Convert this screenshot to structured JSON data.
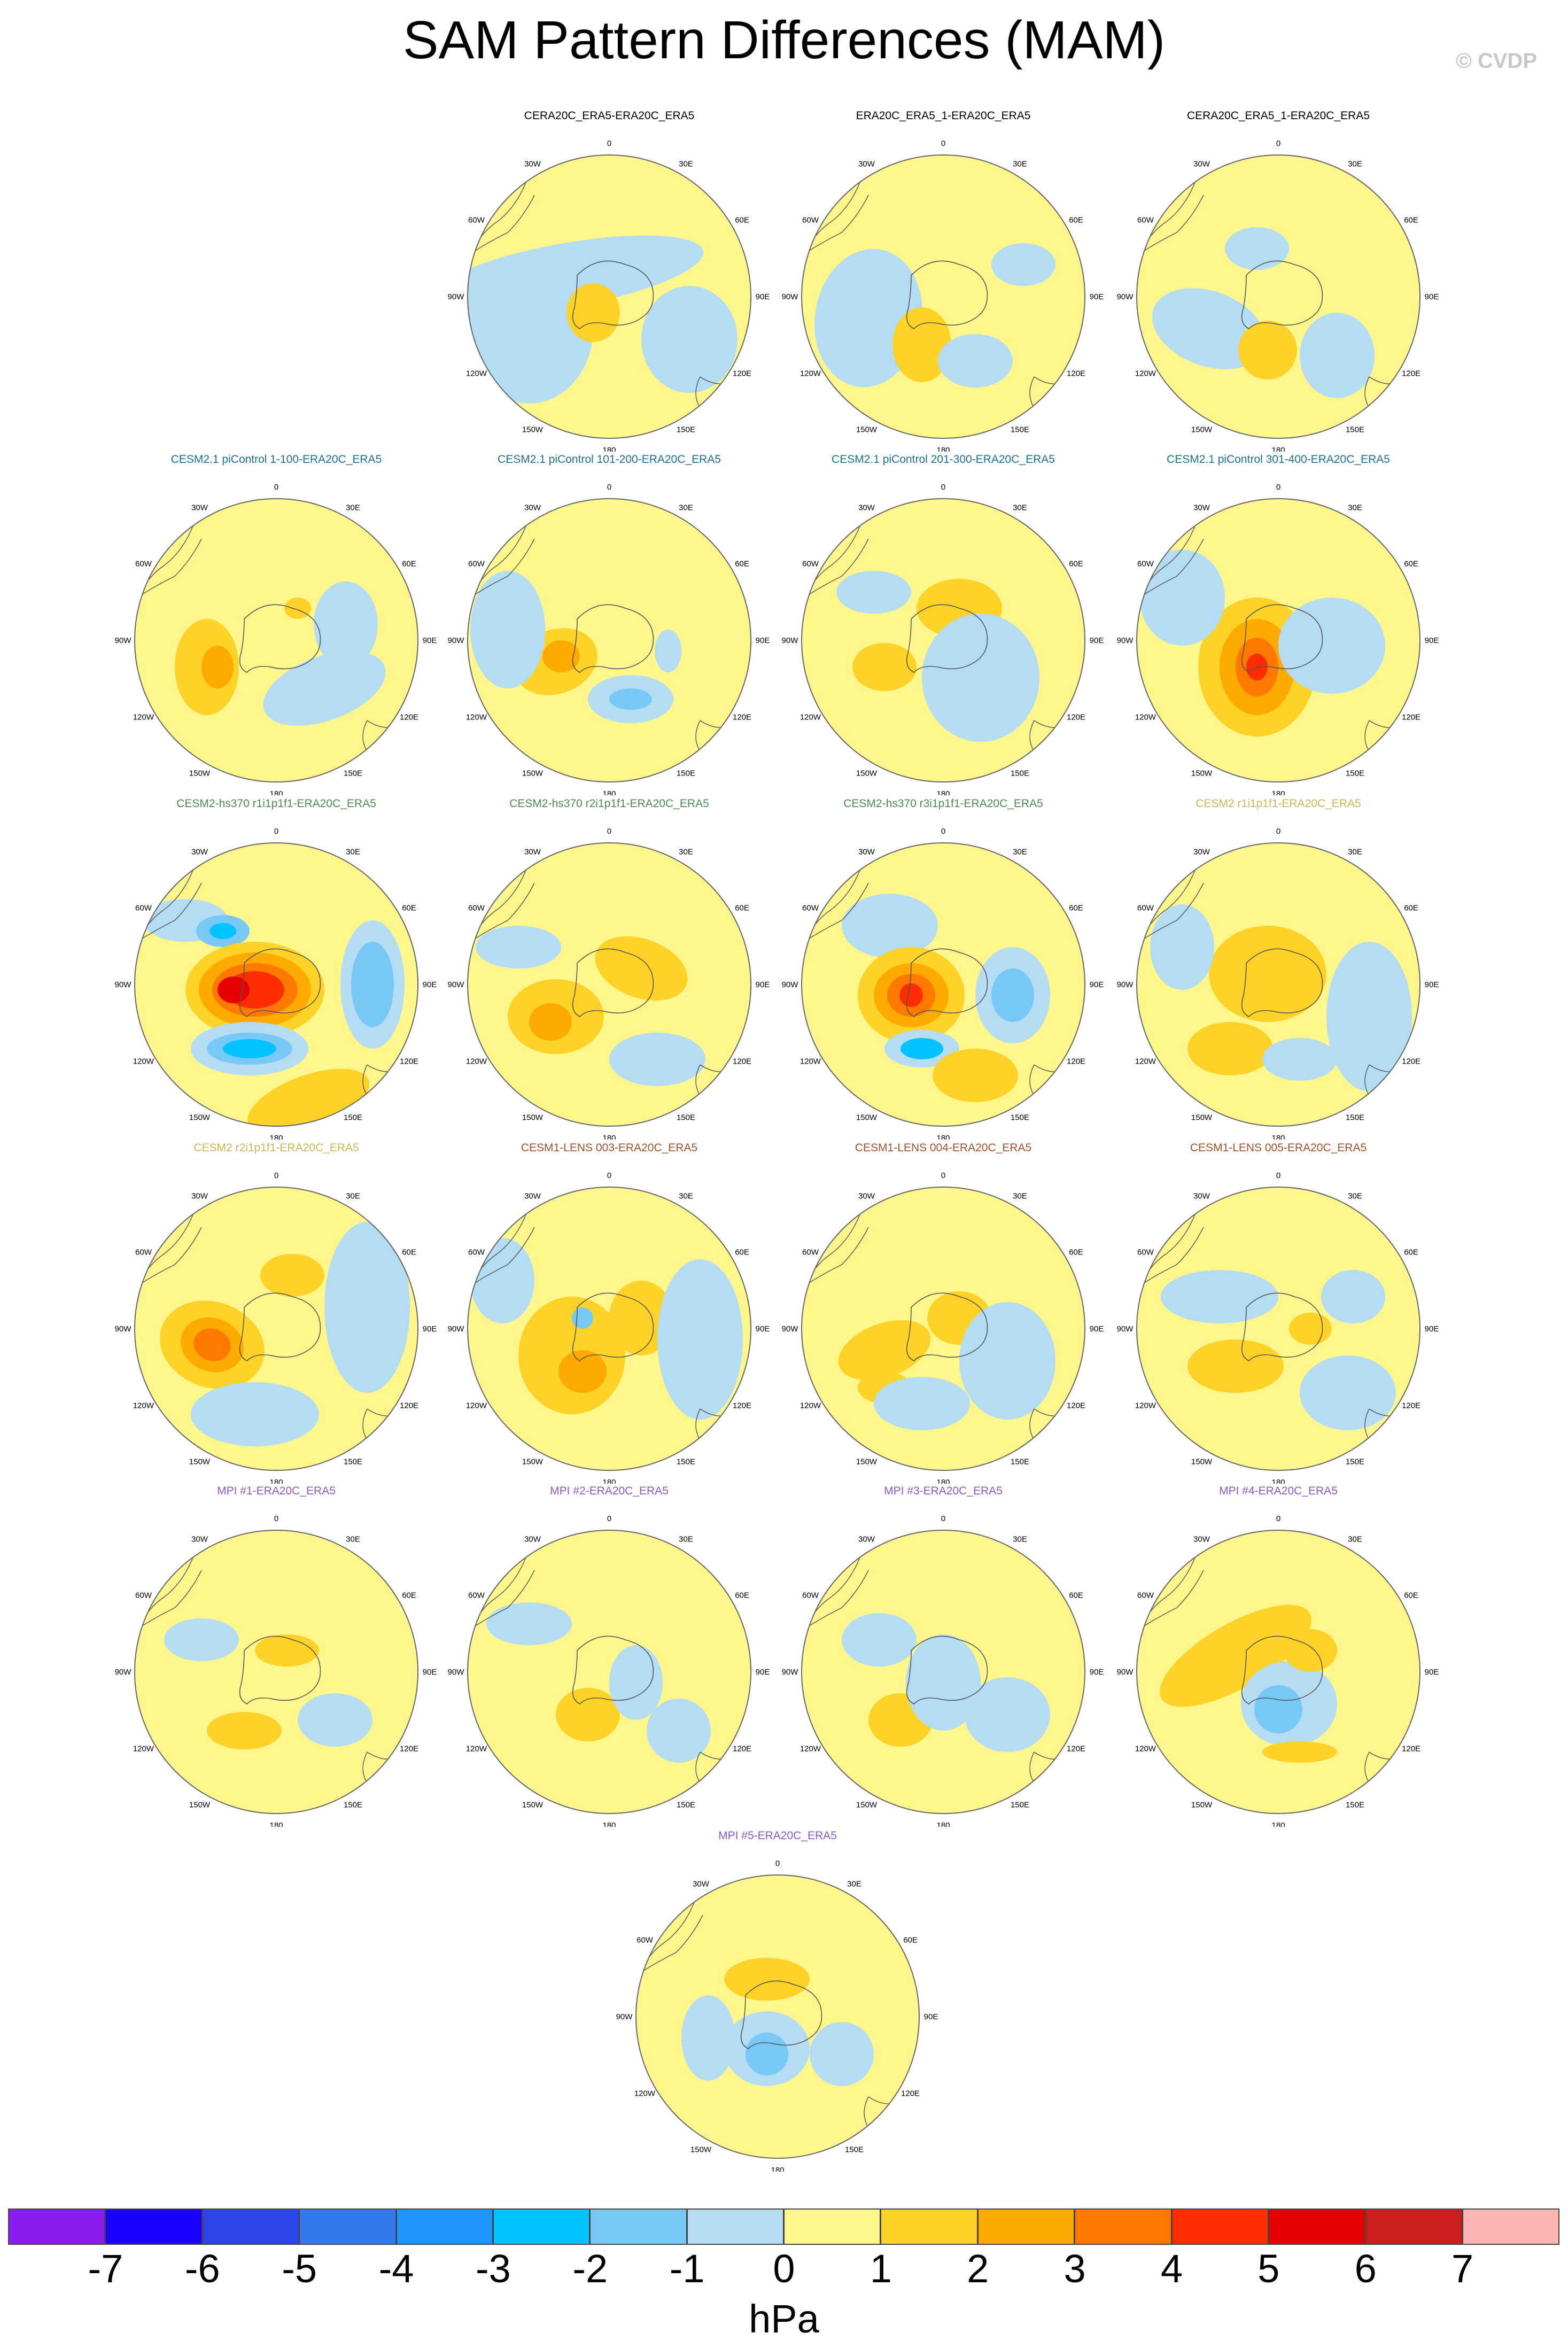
{
  "title": "SAM Pattern Differences (MAM)",
  "credit": "© CVDP",
  "lon_labels": [
    "0",
    "30E",
    "60E",
    "90E",
    "120E",
    "150E",
    "180",
    "150W",
    "120W",
    "90W",
    "60W",
    "30W"
  ],
  "colorbar": {
    "units": "hPa",
    "tick_labels": [
      "-7",
      "-6",
      "-5",
      "-4",
      "-3",
      "-2",
      "-1",
      "0",
      "1",
      "2",
      "3",
      "4",
      "5",
      "6",
      "7"
    ],
    "colors": [
      "#8a1cf2",
      "#1a00ff",
      "#2b45e8",
      "#3478ee",
      "#1e96ff",
      "#00c3ff",
      "#78c8f5",
      "#b4dcf2",
      "#fff68c",
      "#ffd228",
      "#ffaa00",
      "#ff7800",
      "#ff2d00",
      "#e60000",
      "#cd1e1e",
      "#ffb4b4"
    ]
  },
  "panels": [
    {
      "title": "CERA20C_ERA5-ERA20C_ERA5",
      "title_color": "#000000"
    },
    {
      "title": "ERA20C_ERA5_1-ERA20C_ERA5",
      "title_color": "#000000"
    },
    {
      "title": "CERA20C_ERA5_1-ERA20C_ERA5",
      "title_color": "#000000"
    },
    {
      "title": "CESM2.1 piControl 1-100-ERA20C_ERA5",
      "title_color": "#1e6e96"
    },
    {
      "title": "CESM2.1 piControl 101-200-ERA20C_ERA5",
      "title_color": "#1e6e96"
    },
    {
      "title": "CESM2.1 piControl 201-300-ERA20C_ERA5",
      "title_color": "#1e6e96"
    },
    {
      "title": "CESM2.1 piControl 301-400-ERA20C_ERA5",
      "title_color": "#1e6e96"
    },
    {
      "title": "CESM2-hs370 r1i1p1f1-ERA20C_ERA5",
      "title_color": "#4f8a55"
    },
    {
      "title": "CESM2-hs370 r2i1p1f1-ERA20C_ERA5",
      "title_color": "#4f8a55"
    },
    {
      "title": "CESM2-hs370 r3i1p1f1-ERA20C_ERA5",
      "title_color": "#4f8a55"
    },
    {
      "title": "CESM2 r1i1p1f1-ERA20C_ERA5",
      "title_color": "#d2b45a"
    },
    {
      "title": "CESM2 r2i1p1f1-ERA20C_ERA5",
      "title_color": "#d2b45a"
    },
    {
      "title": "CESM1-LENS 003-ERA20C_ERA5",
      "title_color": "#a0522d"
    },
    {
      "title": "CESM1-LENS 004-ERA20C_ERA5",
      "title_color": "#a0522d"
    },
    {
      "title": "CESM1-LENS 005-ERA20C_ERA5",
      "title_color": "#a0522d"
    },
    {
      "title": "MPI #1-ERA20C_ERA5",
      "title_color": "#8c5ac8"
    },
    {
      "title": "MPI #2-ERA20C_ERA5",
      "title_color": "#8c5ac8"
    },
    {
      "title": "MPI #3-ERA20C_ERA5",
      "title_color": "#8c5ac8"
    },
    {
      "title": "MPI #4-ERA20C_ERA5",
      "title_color": "#8c5ac8"
    },
    {
      "title": "MPI #5-ERA20C_ERA5",
      "title_color": "#8c5ac8"
    }
  ]
}
